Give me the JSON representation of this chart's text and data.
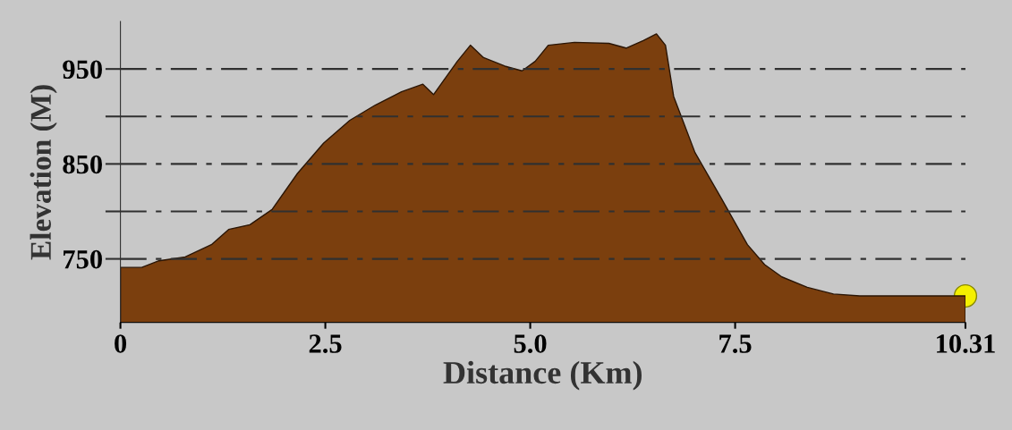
{
  "chart_data": {
    "type": "area",
    "xlabel": "Distance (Km)",
    "ylabel": "Elevation (M)",
    "series": [
      {
        "color": "#7b3f0e",
        "x": [
          0,
          0.26,
          0.47,
          0.79,
          1.11,
          1.32,
          1.58,
          1.85,
          2.16,
          2.48,
          2.8,
          3.11,
          3.43,
          3.69,
          3.82,
          3.96,
          4.11,
          4.27,
          4.43,
          4.69,
          4.9,
          5.06,
          5.22,
          5.54,
          5.96,
          6.17,
          6.38,
          6.54,
          6.65,
          6.75,
          7.01,
          7.33,
          7.65,
          7.86,
          8.07,
          8.38,
          8.7,
          9.02,
          9.65,
          10.31
        ],
        "values": [
          741,
          741,
          748,
          752,
          765,
          781,
          786,
          802,
          840,
          872,
          896,
          912,
          926,
          934,
          923,
          940,
          958,
          975,
          962,
          953,
          948,
          958,
          975,
          978,
          977,
          972,
          980,
          987,
          975,
          921,
          862,
          814,
          765,
          744,
          731,
          720,
          713,
          711,
          711,
          711
        ]
      },
      {
        "type": "scatter",
        "marker": "circle",
        "color": "#f5f000",
        "x": [
          10.31
        ],
        "values": [
          711
        ]
      }
    ],
    "xlim": [
      0,
      10.31
    ],
    "xticks": [
      0,
      2.5,
      {
        "value": 5,
        "label": "5.0"
      },
      7.5,
      10.31
    ],
    "ylim": [
      683,
      1000
    ],
    "yticks": [
      750,
      {
        "value": 800,
        "label": null
      },
      850,
      {
        "value": 900,
        "label": null
      },
      950
    ],
    "grid": "y"
  }
}
